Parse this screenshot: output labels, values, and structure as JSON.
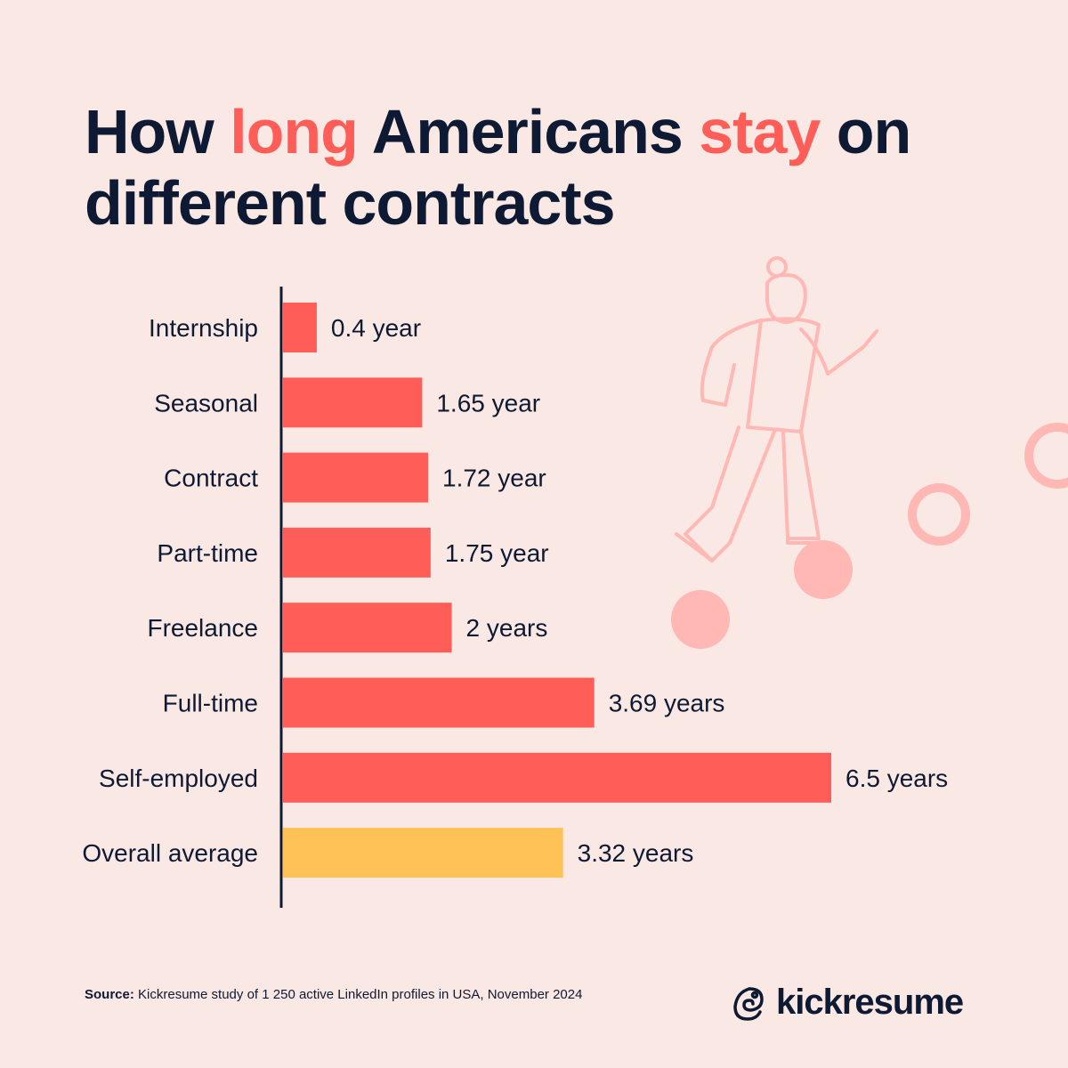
{
  "title": {
    "parts": [
      {
        "text": "How ",
        "highlight": false
      },
      {
        "text": "long",
        "highlight": true
      },
      {
        "text": " Americans ",
        "highlight": false
      },
      {
        "text": "stay",
        "highlight": true
      },
      {
        "text": " on different contracts",
        "highlight": false
      }
    ]
  },
  "colors": {
    "background": "#fae8e4",
    "bar": "#ff5d57",
    "average_bar": "#ffc257",
    "text": "#0e1a33",
    "highlight": "#ff5d57",
    "decor": "#ffb8b3"
  },
  "chart_data": {
    "type": "bar",
    "orientation": "horizontal",
    "categories": [
      "Internship",
      "Seasonal",
      "Contract",
      "Part-time",
      "Freelance",
      "Full-time",
      "Self-employed",
      "Overall average"
    ],
    "values": [
      0.4,
      1.65,
      1.72,
      1.75,
      2,
      3.69,
      6.5,
      3.32
    ],
    "data_labels": [
      "0.4 year",
      "1.65 year",
      "1.72 year",
      "1.75 year",
      "2 years",
      "3.69 years",
      "6.5 years",
      "3.32 years"
    ],
    "unit": "years",
    "xlim": [
      0,
      6.5
    ],
    "grid": false,
    "highlighted_category": "Overall average"
  },
  "source": {
    "label": "Source:",
    "text": " Kickresume study of 1 250 active LinkedIn profiles in USA, November 2024"
  },
  "logo": {
    "text": "kickresume"
  }
}
